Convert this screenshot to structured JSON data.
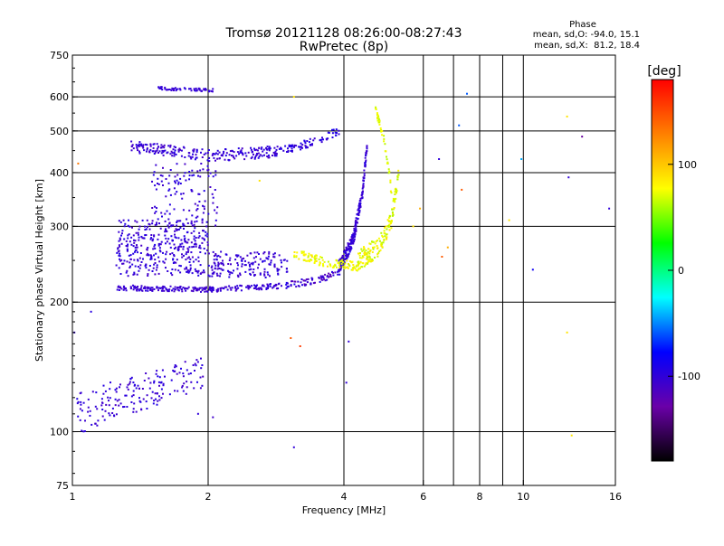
{
  "chart_data": {
    "type": "scatter",
    "title": "Tromsø 20121128 08:26:00-08:27:43",
    "subtitle": "RwPretec (8p)",
    "xlabel": "Frequency [MHz]",
    "ylabel": "Stationary phase Virtual Height [km]",
    "x_scale": "log",
    "y_scale": "log",
    "xlim": [
      1,
      16
    ],
    "ylim": [
      75,
      750
    ],
    "x_ticks": [
      {
        "value": 1,
        "label": "1"
      },
      {
        "value": 2,
        "label": "2"
      },
      {
        "value": 4,
        "label": "4"
      },
      {
        "value": 6,
        "label": "6"
      },
      {
        "value": 8,
        "label": "8"
      },
      {
        "value": 10,
        "label": "10"
      },
      {
        "value": 16,
        "label": "16"
      }
    ],
    "x_grid": [
      1,
      2,
      4,
      6,
      8,
      10,
      16
    ],
    "x_minor_grid": [
      7,
      9
    ],
    "y_ticks": [
      {
        "value": 75,
        "label": "75"
      },
      {
        "value": 100,
        "label": "100"
      },
      {
        "value": 200,
        "label": "200"
      },
      {
        "value": 300,
        "label": "300"
      },
      {
        "value": 400,
        "label": "400"
      },
      {
        "value": 500,
        "label": "500"
      },
      {
        "value": 600,
        "label": "600"
      },
      {
        "value": 750,
        "label": "750"
      }
    ],
    "y_grid": [
      100,
      200,
      300,
      400,
      500,
      600
    ],
    "phase_stats": {
      "title": "Phase",
      "line_o": "mean, sd,O: -94.0, 15.1",
      "line_x": "mean, sd,X:  81.2, 18.4"
    },
    "colorbar": {
      "unit": "[deg]",
      "min": -180,
      "max": 180,
      "ticks": [
        {
          "value": 100,
          "label": "100"
        },
        {
          "value": 0,
          "label": "0"
        },
        {
          "value": -100,
          "label": "-100"
        }
      ],
      "colors": [
        "#000000",
        "#6a00a8",
        "#0000ff",
        "#00ffff",
        "#00ff00",
        "#ffff00",
        "#ff8000",
        "#ff0000"
      ]
    },
    "clusters": [
      {
        "f": [
          1.02,
          1.95
        ],
        "h": [
          108,
          140
        ],
        "phase": [
          -115,
          -90
        ],
        "n": 180,
        "curve": [
          [
            1.02,
            110
          ],
          [
            1.2,
            118
          ],
          [
            1.5,
            126
          ],
          [
            1.95,
            138
          ]
        ],
        "band": 12
      },
      {
        "f": [
          1.25,
          2.9
        ],
        "h": [
          212,
          222
        ],
        "phase": [
          -115,
          -95
        ],
        "n": 220,
        "curve": [
          [
            1.25,
            216
          ],
          [
            2.0,
            214
          ],
          [
            2.9,
            218
          ]
        ],
        "band": 3
      },
      {
        "f": [
          2.9,
          3.9
        ],
        "h": [
          218,
          236
        ],
        "phase": [
          -130,
          -85
        ],
        "n": 70,
        "curve": [
          [
            2.9,
            218
          ],
          [
            3.5,
            225
          ],
          [
            3.9,
            235
          ]
        ],
        "band": 4
      },
      {
        "f": [
          1.25,
          2.0
        ],
        "h": [
          230,
          310
        ],
        "phase": [
          -115,
          -90
        ],
        "n": 360
      },
      {
        "f": [
          2.0,
          3.0
        ],
        "h": [
          228,
          262
        ],
        "phase": [
          -115,
          -90
        ],
        "n": 160
      },
      {
        "f": [
          1.5,
          2.1
        ],
        "h": [
          300,
          420
        ],
        "phase": [
          -115,
          -90
        ],
        "n": 120
      },
      {
        "f": [
          1.35,
          2.9
        ],
        "h": [
          430,
          480
        ],
        "phase": [
          -115,
          -90
        ],
        "n": 230,
        "curve": [
          [
            1.35,
            460
          ],
          [
            2.0,
            438
          ],
          [
            2.9,
            448
          ]
        ],
        "band": 14
      },
      {
        "f": [
          2.9,
          3.9
        ],
        "h": [
          445,
          520
        ],
        "phase": [
          -110,
          -85
        ],
        "n": 70,
        "curve": [
          [
            2.9,
            450
          ],
          [
            3.4,
            470
          ],
          [
            3.9,
            500
          ]
        ],
        "band": 10
      },
      {
        "f": [
          3.9,
          4.5
        ],
        "h": [
          240,
          620
        ],
        "phase": [
          -115,
          -90
        ],
        "n": 230,
        "curve": [
          [
            3.9,
            240
          ],
          [
            4.2,
            280
          ],
          [
            4.4,
            360
          ],
          [
            4.5,
            460
          ],
          [
            4.55,
            600
          ]
        ],
        "band": 10
      },
      {
        "f": [
          1.55,
          2.05
        ],
        "h": [
          615,
          640
        ],
        "phase": [
          -110,
          -95
        ],
        "n": 60,
        "curve": [
          [
            1.55,
            628
          ],
          [
            1.8,
            624
          ],
          [
            2.05,
            622
          ]
        ],
        "band": 5
      },
      {
        "f": [
          3.1,
          4.3
        ],
        "h": [
          240,
          265
        ],
        "phase": [
          75,
          100
        ],
        "n": 110,
        "curve": [
          [
            3.1,
            260
          ],
          [
            3.6,
            248
          ],
          [
            4.3,
            242
          ]
        ],
        "band": 6
      },
      {
        "f": [
          4.3,
          5.3
        ],
        "h": [
          240,
          420
        ],
        "phase": [
          70,
          100
        ],
        "n": 170,
        "curve": [
          [
            4.3,
            250
          ],
          [
            4.8,
            270
          ],
          [
            5.1,
            310
          ],
          [
            5.3,
            400
          ]
        ],
        "band": 14
      },
      {
        "f": [
          4.7,
          5.1
        ],
        "h": [
          350,
          560
        ],
        "phase": [
          70,
          95
        ],
        "n": 45,
        "curve": [
          [
            4.7,
            560
          ],
          [
            4.9,
            480
          ],
          [
            5.1,
            360
          ]
        ],
        "band": 10
      }
    ],
    "scattered_points": [
      {
        "f": 1.01,
        "h": 170,
        "phase": -100
      },
      {
        "f": 1.1,
        "h": 190,
        "phase": -95
      },
      {
        "f": 1.9,
        "h": 110,
        "phase": -100
      },
      {
        "f": 2.05,
        "h": 108,
        "phase": -110
      },
      {
        "f": 3.1,
        "h": 92,
        "phase": -100
      },
      {
        "f": 3.05,
        "h": 165,
        "phase": 150
      },
      {
        "f": 3.2,
        "h": 158,
        "phase": 160
      },
      {
        "f": 3.1,
        "h": 600,
        "phase": 100
      },
      {
        "f": 2.6,
        "h": 383,
        "phase": 100
      },
      {
        "f": 4.1,
        "h": 162,
        "phase": -100
      },
      {
        "f": 4.05,
        "h": 130,
        "phase": -100
      },
      {
        "f": 6.5,
        "h": 430,
        "phase": -100
      },
      {
        "f": 6.6,
        "h": 255,
        "phase": 150
      },
      {
        "f": 6.8,
        "h": 268,
        "phase": 120
      },
      {
        "f": 7.2,
        "h": 515,
        "phase": -50
      },
      {
        "f": 7.3,
        "h": 365,
        "phase": 150
      },
      {
        "f": 7.5,
        "h": 610,
        "phase": -50
      },
      {
        "f": 9.3,
        "h": 310,
        "phase": 100
      },
      {
        "f": 9.9,
        "h": 430,
        "phase": -30
      },
      {
        "f": 10.5,
        "h": 238,
        "phase": -80
      },
      {
        "f": 12.5,
        "h": 540,
        "phase": 100
      },
      {
        "f": 12.6,
        "h": 390,
        "phase": -100
      },
      {
        "f": 12.5,
        "h": 170,
        "phase": 100
      },
      {
        "f": 12.8,
        "h": 98,
        "phase": 100
      },
      {
        "f": 13.5,
        "h": 485,
        "phase": -140
      },
      {
        "f": 15.5,
        "h": 330,
        "phase": -100
      },
      {
        "f": 5.7,
        "h": 300,
        "phase": 100
      },
      {
        "f": 5.9,
        "h": 330,
        "phase": 120
      },
      {
        "f": 1.03,
        "h": 420,
        "phase": 140
      }
    ]
  }
}
